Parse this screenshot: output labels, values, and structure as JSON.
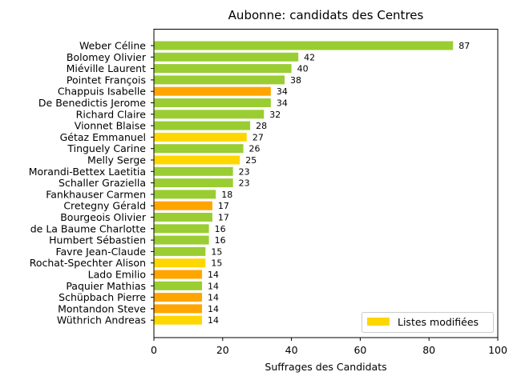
{
  "chart_data": {
    "type": "bar",
    "orientation": "horizontal",
    "title": "Aubonne: candidats des Centres",
    "xlabel": "Suffrages des Candidats",
    "ylabel": "",
    "xlim": [
      0,
      100
    ],
    "xticks": [
      "0",
      "20",
      "40",
      "60",
      "80",
      "100"
    ],
    "grid": false,
    "legend": {
      "position": "lower-right",
      "label": "Listes modifiées",
      "color": "#FFD700"
    },
    "colors": {
      "green": "#9ACD32",
      "orange": "#FFA500",
      "gold": "#FFD700"
    },
    "categories": [
      "Weber Céline",
      "Bolomey Olivier",
      "Miéville Laurent",
      "Pointet François",
      "Chappuis Isabelle",
      "De Benedictis Jerome",
      "Richard Claire",
      "Vionnet Blaise",
      "Gétaz Emmanuel",
      "Tinguely Carine",
      "Melly Serge",
      "Morandi-Bettex Laetitia",
      "Schaller Graziella",
      "Fankhauser Carmen",
      "Cretegny Gérald",
      "Bourgeois Olivier",
      "de La Baume Charlotte",
      "Humbert Sébastien",
      "Favre Jean-Claude",
      "Rochat-Spechter Alison",
      "Lado Emilio",
      "Paquier Mathias",
      "Schüpbach Pierre",
      "Montandon Steve",
      "Wüthrich Andreas"
    ],
    "values": [
      87,
      42,
      40,
      38,
      34,
      34,
      32,
      28,
      27,
      26,
      25,
      23,
      23,
      18,
      17,
      17,
      16,
      16,
      15,
      15,
      14,
      14,
      14,
      14,
      14
    ],
    "bar_colors": [
      "green",
      "green",
      "green",
      "green",
      "orange",
      "green",
      "green",
      "green",
      "gold",
      "green",
      "gold",
      "green",
      "green",
      "green",
      "orange",
      "green",
      "green",
      "green",
      "green",
      "gold",
      "orange",
      "green",
      "orange",
      "orange",
      "gold"
    ]
  }
}
